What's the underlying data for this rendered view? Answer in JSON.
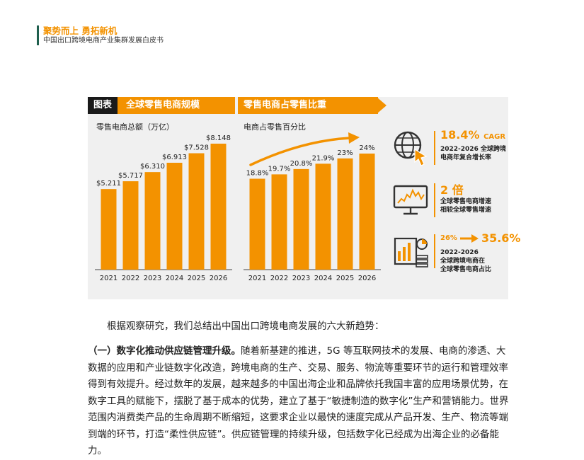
{
  "header": {
    "title": "聚势而上 勇拓新机",
    "subtitle": "中国出口跨境电商产业集群发展白皮书"
  },
  "figure": {
    "tag": "图表",
    "panel1_title": "全球零售电商规模",
    "panel2_title": "零售电商占零售比重",
    "colors": {
      "accent": "#f39200",
      "dark": "#1a1a1a",
      "bg": "#f0f0f0"
    }
  },
  "chart_data": [
    {
      "type": "bar",
      "title": "全球零售电商规模",
      "ylabel": "零售电商总额（万亿）",
      "categories": [
        "2021",
        "2022",
        "2023",
        "2024",
        "2025",
        "2026"
      ],
      "values": [
        5.211,
        5.717,
        6.31,
        6.913,
        7.528,
        8.148
      ],
      "labels": [
        "$5.211",
        "$5.717",
        "$6.310",
        "$6.913",
        "$7.528",
        "$8.148"
      ],
      "ylim": [
        0,
        8.148
      ]
    },
    {
      "type": "bar",
      "title": "零售电商占零售比重",
      "ylabel": "电商占零售百分比",
      "categories": [
        "2021",
        "2022",
        "2023",
        "2024",
        "2025",
        "2026"
      ],
      "values": [
        18.8,
        19.7,
        20.8,
        21.9,
        23,
        24
      ],
      "labels": [
        "18.8%",
        "19.7%",
        "20.8%",
        "21.9%",
        "23%",
        "24%"
      ],
      "ylim": [
        0,
        24
      ]
    }
  ],
  "stats": [
    {
      "icon": "globe-cursor-icon",
      "value": "18.4%",
      "value_suffix": "CAGR",
      "desc1": "2022-2026 全球跨境",
      "desc2": "电商年复合增长率"
    },
    {
      "icon": "monitor-chart-icon",
      "value": "2 倍",
      "desc1": "全球零售电商增速",
      "desc2": "相较全球零售增速"
    },
    {
      "icon": "money-chart-icon",
      "value_from": "26%",
      "value": "35.6%",
      "desc1": "2022-2026",
      "desc2": "全球跨境电商在",
      "desc3": "全球零售电商占比"
    }
  ],
  "body": {
    "intro": "根据观察研究，我们总结出中国出口跨境电商发展的六大新趋势：",
    "section_heading": "（一）数字化推动供应链管理升级。",
    "section_text": "随着新基建的推进，5G 等互联网技术的发展、电商的渗透、大数据的应用和产业链数字化改造，跨境电商的生产、交易、服务、物流等重要环节的运行和管理效率得到有效提升。经过数年的发展，越来越多的中国出海企业和品牌依托我国丰富的应用场景优势，在数字工具的赋能下，摆脱了基于成本的优势，建立了基于“敏捷制造的数字化”生产和营销能力。世界范围内消费类产品的生命周期不断缩短，这要求企业以最快的速度完成从产品开发、生产、物流等端到端的环节，打造“柔性供应链”。供应链管理的持续升级，包括数字化已经成为出海企业的必备能力。"
  }
}
